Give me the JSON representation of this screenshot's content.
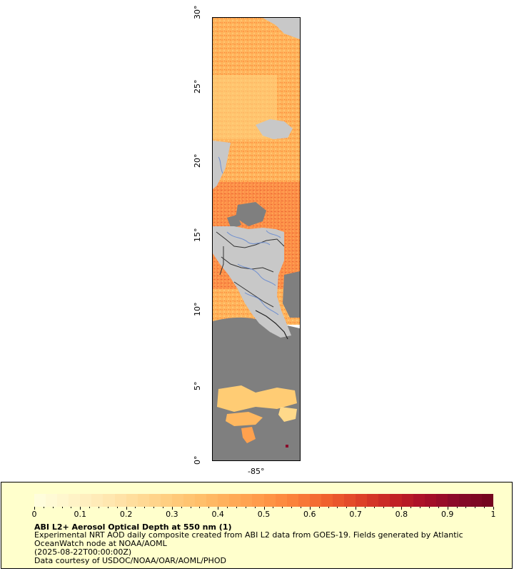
{
  "map": {
    "lat_labels": [
      "0°",
      "5°",
      "10°",
      "15°",
      "20°",
      "25°",
      "30°"
    ],
    "lon_label": "-85°",
    "colors": {
      "no_data_land": "#c8c8c8",
      "no_data_ocean": "#7f7f7f",
      "border": "#333333",
      "river": "#6f8fd0"
    }
  },
  "legend": {
    "colorbar_ticks": [
      "0",
      "0.1",
      "0.2",
      "0.3",
      "0.4",
      "0.5",
      "0.6",
      "0.7",
      "0.8",
      "0.9",
      "1"
    ],
    "colorbar_colors": [
      "#fffddc",
      "#fff4c8",
      "#ffe9b4",
      "#ffdc9a",
      "#ffce80",
      "#ffbf6a",
      "#ffac58",
      "#ff9848",
      "#fb7f3a",
      "#f0602e",
      "#de4128",
      "#c52425",
      "#a90f28",
      "#8a0a2a",
      "#75051f"
    ],
    "title": "ABI L2+ Aerosol Optical Depth at 550 nm (1)",
    "description_line1": "Experimental NRT AOD daily composite created from ABI L2 data from GOES-19. Fields generated by Atlantic",
    "description_line2": "OceanWatch node at NOAA/AOML",
    "timestamp": "(2025-08-22T00:00:00Z)",
    "credit": "Data courtesy of USDOC/NOAA/OAR/AOML/PHOD"
  }
}
